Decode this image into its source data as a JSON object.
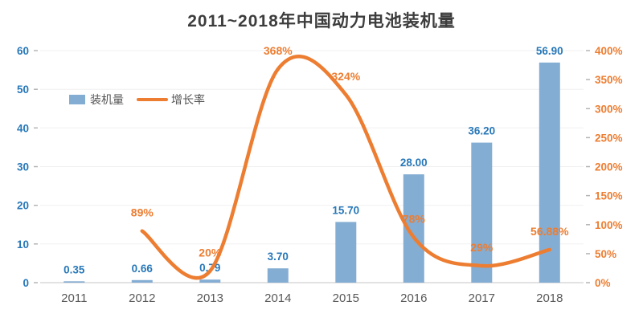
{
  "title": "2011~2018年中国动力电池装机量",
  "legend": {
    "bar_label": "装机量",
    "line_label": "增长率"
  },
  "colors": {
    "bar": "#84add3",
    "bar_label": "#2878b8",
    "line": "#ed7d31",
    "line_label": "#ed7d31",
    "left_axis": "#2878b8",
    "right_axis": "#ed7d31",
    "x_axis": "#595959",
    "grid": "#f0f0f0",
    "axis_line": "#d9d9d9",
    "legend_text": "#555555"
  },
  "chart_data": {
    "type": "bar",
    "title": "2011~2018年中国动力电池装机量",
    "categories": [
      "2011",
      "2012",
      "2013",
      "2014",
      "2015",
      "2016",
      "2017",
      "2018"
    ],
    "series": [
      {
        "name": "装机量",
        "type": "bar",
        "axis": "left",
        "values": [
          0.35,
          0.66,
          0.79,
          3.7,
          15.7,
          28.0,
          36.2,
          56.9
        ],
        "labels": [
          "0.35",
          "0.66",
          "0.79",
          "3.70",
          "15.70",
          "28.00",
          "36.20",
          "56.90"
        ]
      },
      {
        "name": "增长率",
        "type": "line",
        "axis": "right",
        "values": [
          null,
          89,
          20,
          368,
          324,
          78,
          29,
          56.88
        ],
        "labels": [
          "",
          "89%",
          "20%",
          "368%",
          "324%",
          "78%",
          "29%",
          "56.88%"
        ]
      }
    ],
    "left_axis": {
      "min": 0,
      "max": 60,
      "step": 10
    },
    "right_axis": {
      "min": 0,
      "max": 400,
      "step": 50,
      "suffix": "%"
    },
    "grid": true,
    "legend_position": "upper-left"
  }
}
